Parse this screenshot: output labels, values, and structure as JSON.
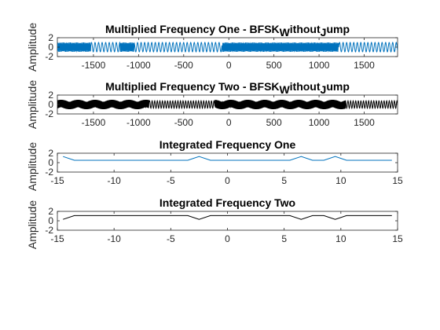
{
  "chart_data": [
    {
      "type": "line",
      "title": "Multiplied Frequency One - BFSK",
      "title_sub": "W",
      "title_mid": "ithout",
      "title_sub2": "J",
      "title_end": "ump",
      "ylabel": "Amplitude",
      "xlim": [
        -1900,
        1870
      ],
      "ylim": [
        -2,
        2
      ],
      "xticks": [
        -1500,
        -1000,
        -500,
        0,
        500,
        1000,
        1500
      ],
      "yticks": [
        -2,
        0,
        2
      ],
      "color": "#0072BD",
      "signal": "fsk-dense",
      "x": [
        -1900,
        -1500,
        -1000,
        -500,
        0,
        500,
        1000,
        1500,
        1870
      ],
      "y_range": [
        -1,
        1
      ]
    },
    {
      "type": "line",
      "title": "Multiplied Frequency Two - BFSK",
      "title_sub": "W",
      "title_mid": "ithout",
      "title_sub2": "J",
      "title_end": "ump",
      "ylabel": "Amplitude",
      "xlim": [
        -1900,
        1870
      ],
      "ylim": [
        -2,
        2
      ],
      "xticks": [
        -1500,
        -1000,
        -500,
        0,
        500,
        1000,
        1500
      ],
      "yticks": [
        -2,
        0,
        2
      ],
      "color": "#000000",
      "signal": "fsk-dense-alt",
      "x": [
        -1900,
        -1500,
        -1000,
        -500,
        0,
        500,
        1000,
        1500,
        1870
      ],
      "y_range": [
        -1,
        1
      ]
    },
    {
      "type": "line",
      "title": "Integrated Frequency One",
      "ylabel": "Amplitude",
      "xlim": [
        -15,
        15
      ],
      "ylim": [
        -2,
        2
      ],
      "xticks": [
        -15,
        -10,
        -5,
        0,
        5,
        10,
        15
      ],
      "yticks": [
        -2,
        0,
        2
      ],
      "color": "#0072BD",
      "x": [
        -14.5,
        -13.5,
        -12.5,
        -11.5,
        -10.5,
        -9.5,
        -8.5,
        -7.5,
        -6.5,
        -5.5,
        -4.5,
        -3.5,
        -2.5,
        -1.5,
        -0.5,
        0.5,
        1.5,
        2.5,
        3.5,
        4.5,
        5.5,
        6.5,
        7.5,
        8.5,
        9.5,
        10.5,
        11.5,
        12.5,
        13.5,
        14.5
      ],
      "y": [
        1.3,
        0.5,
        0.5,
        0.5,
        0.5,
        0.5,
        0.5,
        0.5,
        0.5,
        0.5,
        0.5,
        0.5,
        1.3,
        0.5,
        0.5,
        0.5,
        0.5,
        0.5,
        0.5,
        0.5,
        0.5,
        1.3,
        0.5,
        0.5,
        1.3,
        0.5,
        0.5,
        0.5,
        0.5,
        0.5
      ]
    },
    {
      "type": "line",
      "title": "Integrated Frequency Two",
      "ylabel": "Amplitude",
      "xlim": [
        -15,
        15
      ],
      "ylim": [
        -2,
        2
      ],
      "xticks": [
        -15,
        -10,
        -5,
        0,
        5,
        10,
        15
      ],
      "yticks": [
        -2,
        0,
        2
      ],
      "color": "#000000",
      "x": [
        -14.5,
        -13.5,
        -12.5,
        -11.5,
        -10.5,
        -9.5,
        -8.5,
        -7.5,
        -6.5,
        -5.5,
        -4.5,
        -3.5,
        -2.5,
        -1.5,
        -0.5,
        0.5,
        1.5,
        2.5,
        3.5,
        4.5,
        5.5,
        6.5,
        7.5,
        8.5,
        9.5,
        10.5,
        11.5,
        12.5,
        13.5,
        14.5
      ],
      "y": [
        0.3,
        1.1,
        1.1,
        1.1,
        1.1,
        1.1,
        1.1,
        1.1,
        1.1,
        1.1,
        1.1,
        1.1,
        0.3,
        1.1,
        1.1,
        1.1,
        1.1,
        1.1,
        1.1,
        1.1,
        1.1,
        0.3,
        1.1,
        1.1,
        0.3,
        1.1,
        1.1,
        1.1,
        1.1,
        1.1
      ]
    }
  ]
}
